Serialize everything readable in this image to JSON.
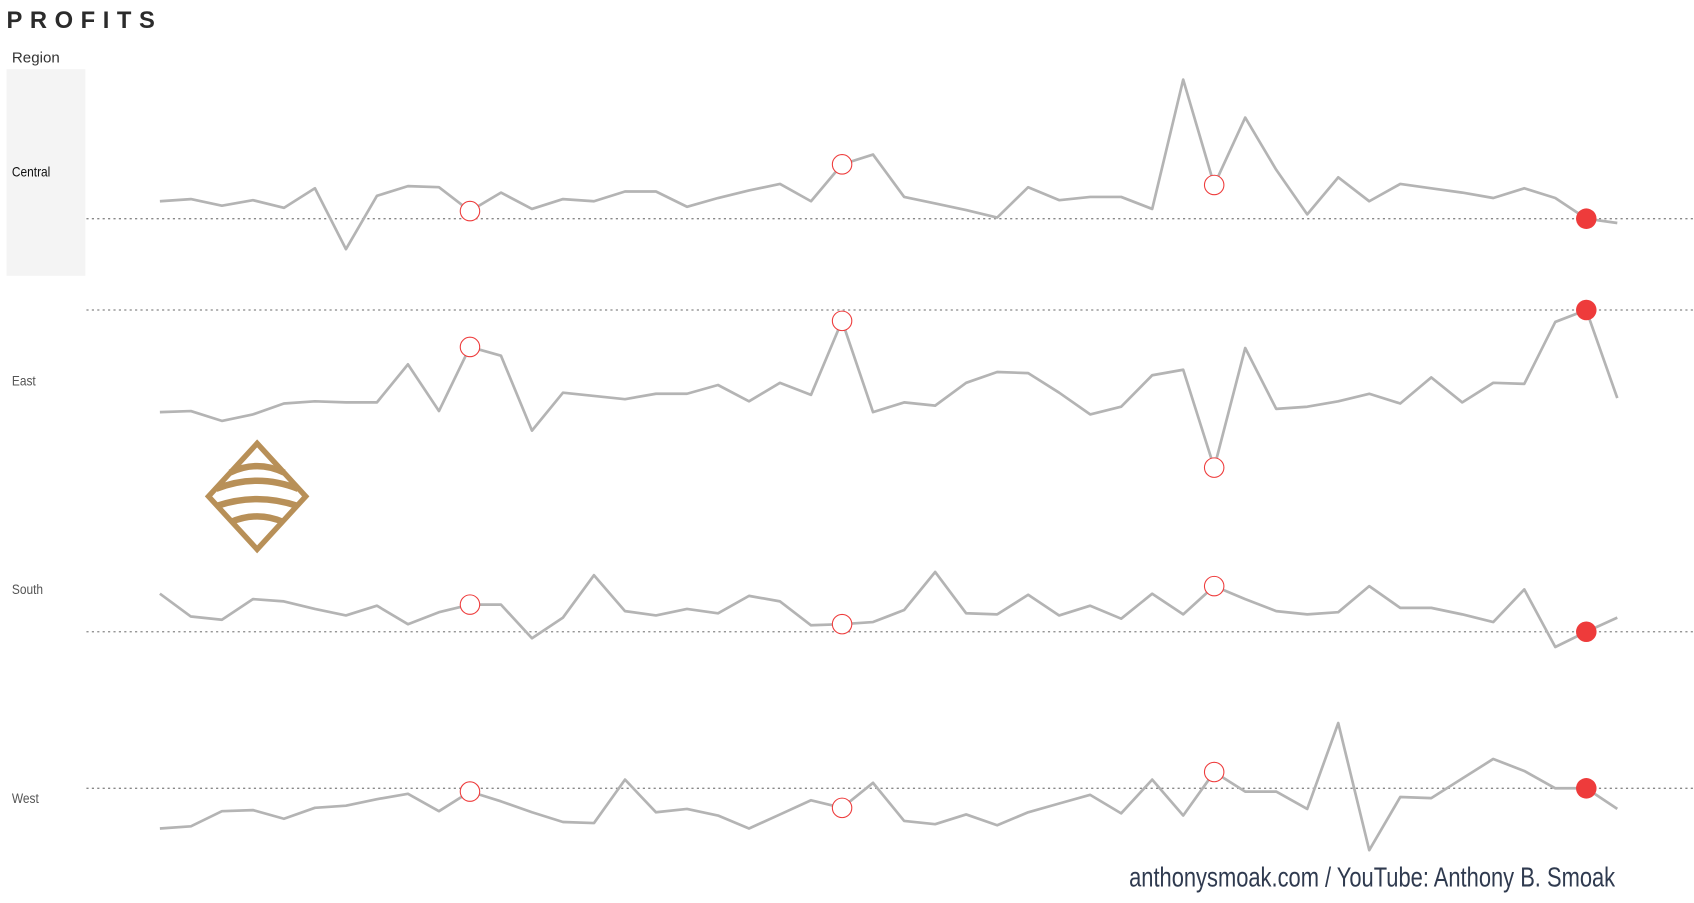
{
  "chart_data": {
    "type": "line",
    "title": "PROFITS",
    "row_header": "Region",
    "footer": "anthonysmoak.com / YouTube: Anthony B. Smoak",
    "color": "#b4b4b4",
    "marker_color": "#ee3b3b",
    "highlight_points": [
      10,
      22,
      34
    ],
    "current_point": 46,
    "reference_line": true,
    "ylim": [
      -96,
      96
    ],
    "series": [
      {
        "name": "Central",
        "values": [
          -26,
          -24,
          -30,
          -25,
          -32,
          -14,
          -70,
          -21,
          -12,
          -13,
          -35,
          -18,
          -33,
          -24,
          -26,
          -17,
          -17,
          -31,
          -23,
          -16,
          -10,
          -26,
          8,
          17,
          -22,
          -28,
          -34,
          -41,
          -13,
          -25,
          -22,
          -22,
          -33,
          86,
          -11,
          51,
          3,
          -38,
          -4,
          -26,
          -10,
          -14,
          -18,
          -23,
          -14,
          -23,
          -42,
          -46
        ]
      },
      {
        "name": "East",
        "values": [
          -28,
          -27,
          -36,
          -30,
          -20,
          -18,
          -19,
          -19,
          16,
          -27,
          32,
          24,
          -45,
          -10,
          -13,
          -16,
          -11,
          -11,
          -3,
          -18,
          -1,
          -12,
          56,
          -28,
          -19,
          -22,
          -1,
          9,
          8,
          -10,
          -30,
          -23,
          6,
          11,
          -79,
          31,
          -25,
          -23,
          -18,
          -11,
          -20,
          4,
          -19,
          -1,
          -2,
          55,
          66,
          -15
        ]
      },
      {
        "name": "South",
        "values": [
          -3,
          -24,
          -27,
          -8,
          -10,
          -17,
          -23,
          -14,
          -31,
          -20,
          -13,
          -13,
          -44,
          -25,
          14,
          -19,
          -23,
          -17,
          -21,
          -5,
          -10,
          -32,
          -31,
          -29,
          -18,
          17,
          -21,
          -22,
          -4,
          -23,
          -14,
          -26,
          -3,
          -22,
          4,
          -8,
          -19,
          -22,
          -20,
          4,
          -16,
          -16,
          -22,
          -29,
          1,
          -52,
          -38,
          -25
        ]
      },
      {
        "name": "West",
        "values": [
          -27,
          -25,
          -11,
          -10,
          -18,
          -8,
          -6,
          0,
          5,
          -11,
          7,
          -2,
          -12,
          -21,
          -22,
          18,
          -12,
          -9,
          -15,
          -27,
          -14,
          -1,
          -8,
          15,
          -20,
          -23,
          -14,
          -24,
          -12,
          -4,
          4,
          -13,
          18,
          -15,
          25,
          7,
          7,
          -9,
          70,
          -47,
          2,
          1,
          19,
          37,
          26,
          10,
          10,
          -9
        ]
      }
    ]
  }
}
